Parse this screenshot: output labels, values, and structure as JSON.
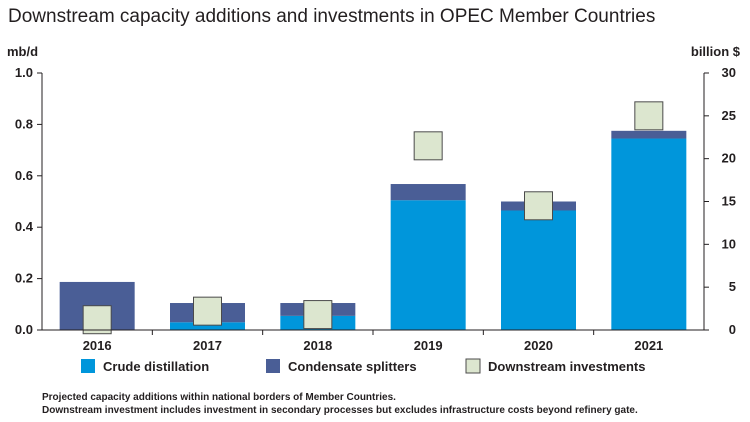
{
  "title": "Downstream capacity additions and investments in OPEC Member Countries",
  "footnotes": [
    "Projected capacity additions within national borders of Member Countries.",
    "Downstream investment includes investment in secondary processes but excludes infrastructure costs beyond refinery gate."
  ],
  "colors": {
    "crude": "#0096db",
    "condensate": "#4a5e96",
    "investment_fill": "#dce6cf",
    "investment_stroke": "#4b4b4b"
  },
  "chart_data": {
    "type": "bar",
    "stacked": true,
    "categories": [
      "2016",
      "2017",
      "2018",
      "2019",
      "2020",
      "2021"
    ],
    "series": [
      {
        "name": "Crude distillation",
        "axis": "left",
        "values": [
          0.0,
          0.03,
          0.055,
          0.505,
          0.465,
          0.745
        ]
      },
      {
        "name": "Condensate splitters",
        "axis": "left",
        "values": [
          0.187,
          0.075,
          0.05,
          0.063,
          0.035,
          0.03
        ]
      },
      {
        "name": "Downstream investments",
        "axis": "right",
        "marker": "square",
        "values": [
          1.2,
          2.2,
          1.8,
          21.5,
          14.5,
          25.0
        ]
      }
    ],
    "ylabel": "mb/d",
    "ylim": [
      0,
      1.0
    ],
    "yticks": [
      "0.0",
      "0.2",
      "0.4",
      "0.6",
      "0.8",
      "1.0"
    ],
    "y2label": "billion $",
    "y2lim": [
      0,
      30
    ],
    "y2ticks": [
      "0",
      "5",
      "10",
      "15",
      "20",
      "25",
      "30"
    ],
    "grid": false,
    "legend_position": "bottom"
  }
}
